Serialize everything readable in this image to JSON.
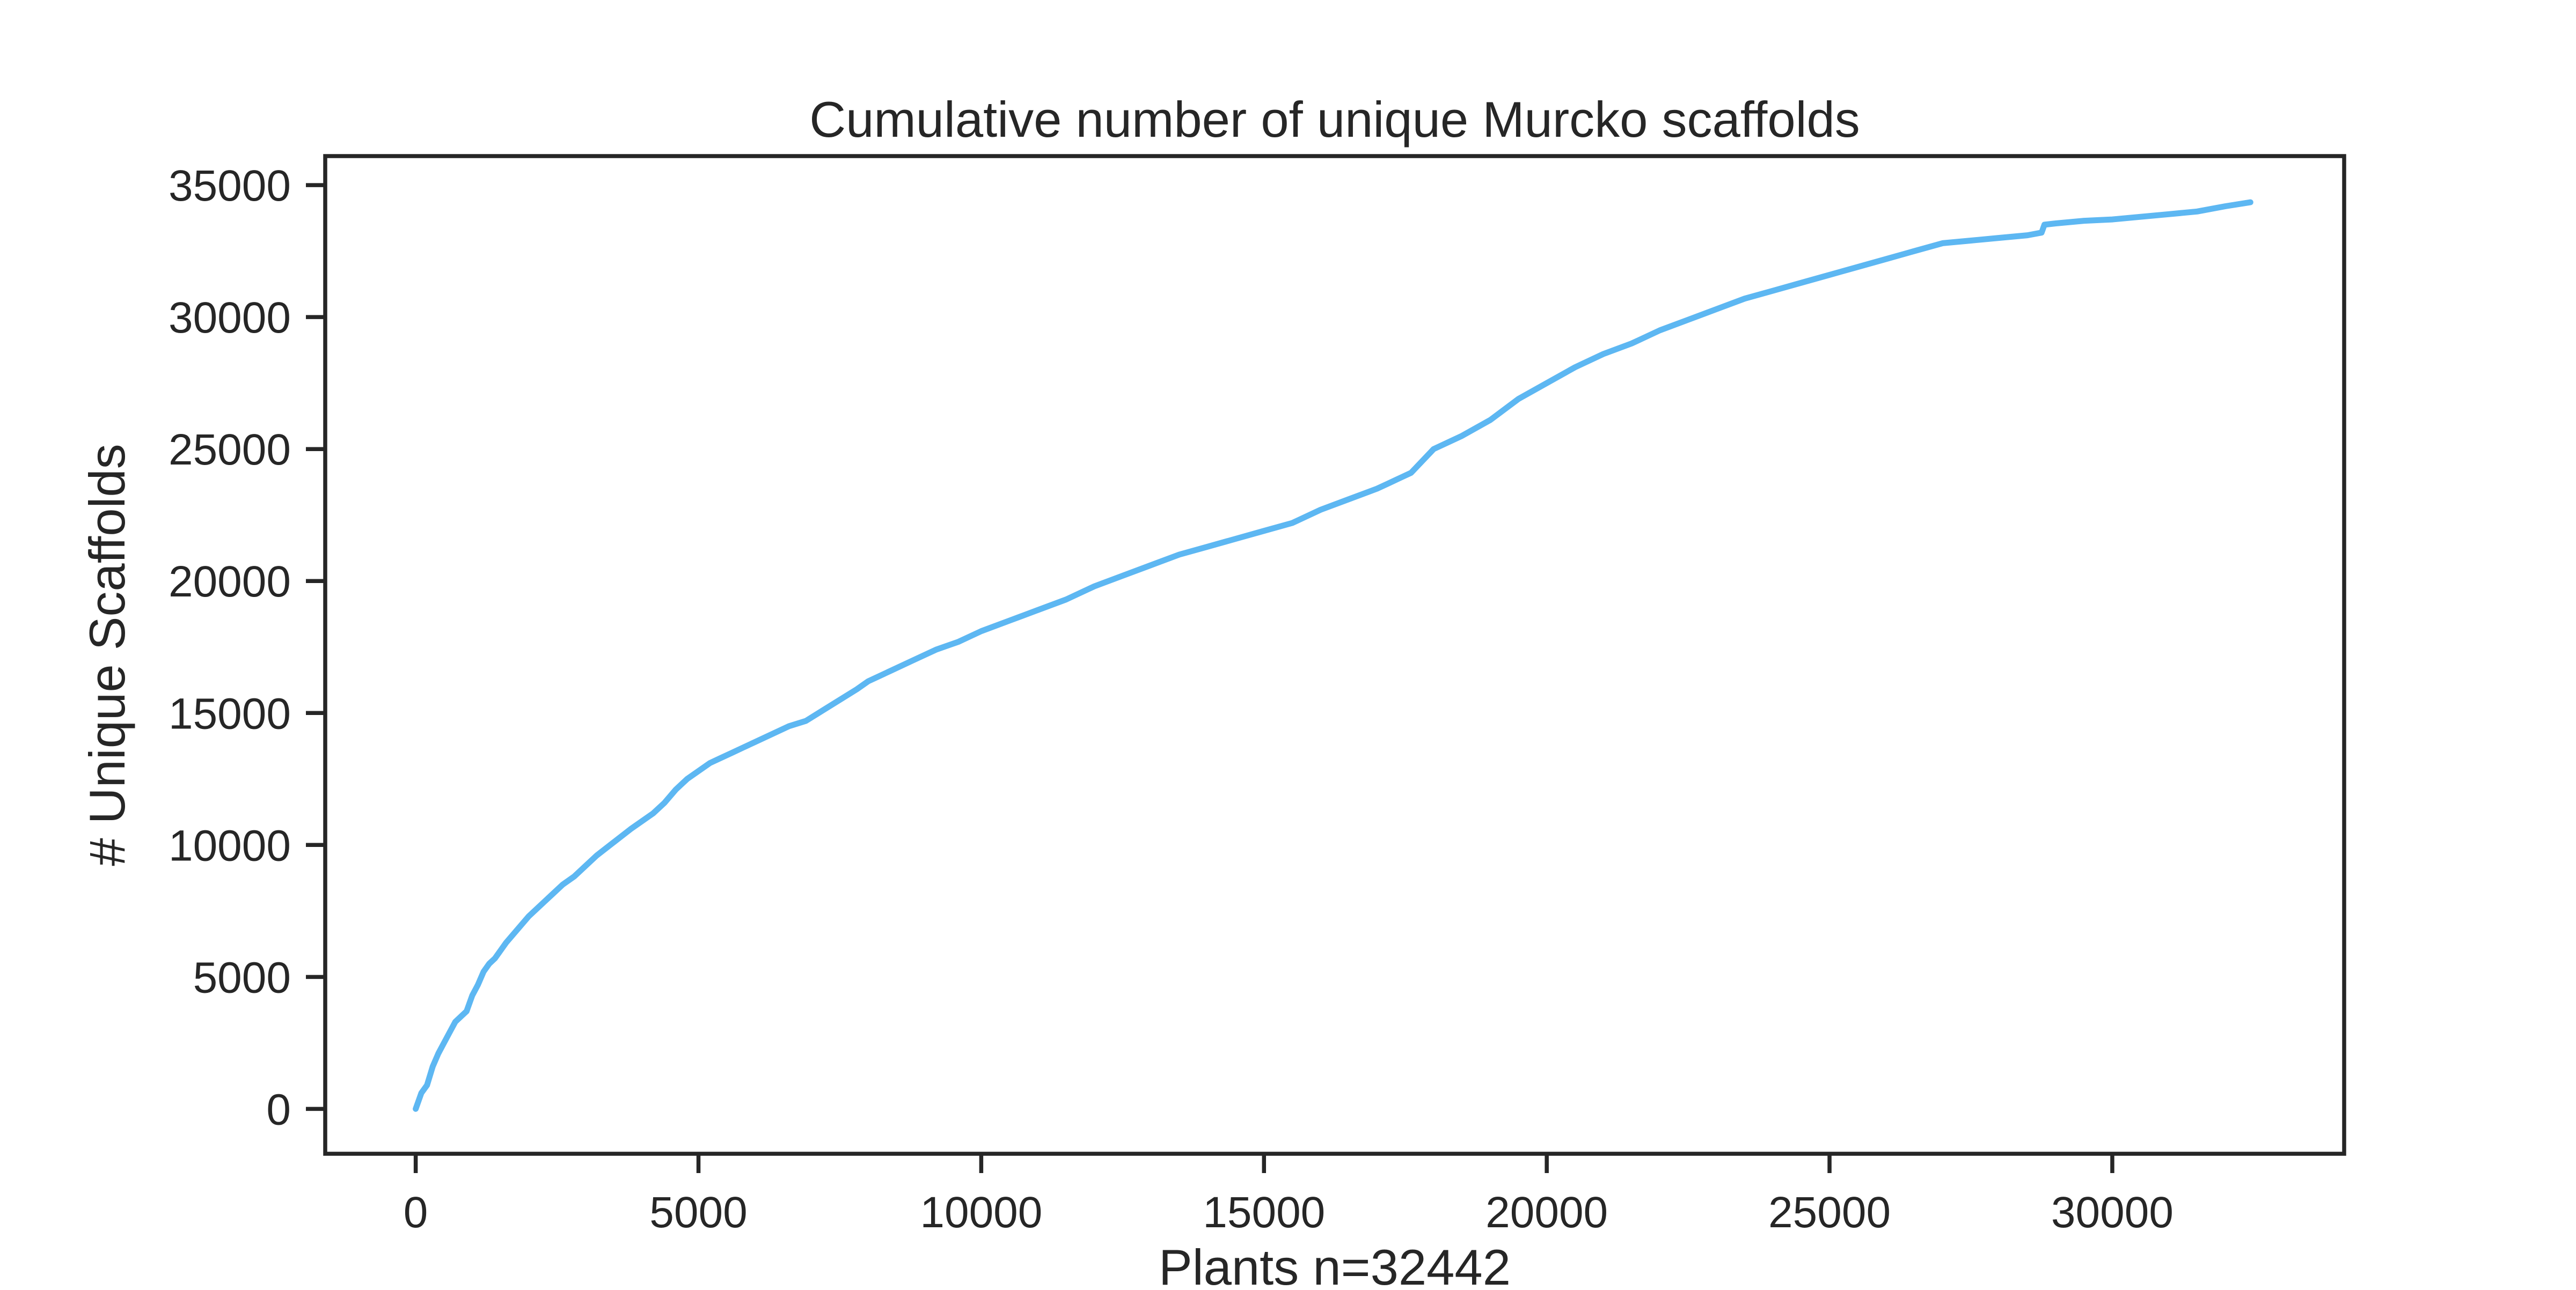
{
  "chart_data": {
    "type": "line",
    "title": "Cumulative number of unique Murcko scaffolds",
    "xlabel": "Plants n=32442",
    "ylabel": "# Unique Scaffolds",
    "xlim": [
      -1600,
      34100
    ],
    "ylim": [
      -1700,
      36100
    ],
    "xticks": [
      0,
      5000,
      10000,
      15000,
      20000,
      25000,
      30000
    ],
    "yticks": [
      0,
      5000,
      10000,
      15000,
      20000,
      25000,
      30000,
      35000
    ],
    "grid": false,
    "legend": "none",
    "colors": {
      "line": "#5db7f2",
      "axis": "#262626"
    },
    "series": [
      {
        "x": [
          0,
          100,
          200,
          300,
          400,
          500,
          600,
          700,
          800,
          900,
          1000,
          1100,
          1200,
          1300,
          1400,
          1500,
          1600,
          1800,
          2000,
          2200,
          2400,
          2600,
          2800,
          3000,
          3200,
          3500,
          3800,
          4000,
          4200,
          4400,
          4600,
          4800,
          5000,
          5200,
          5400,
          5600,
          5800,
          6000,
          6300,
          6600,
          6900,
          7200,
          7500,
          7800,
          8000,
          8400,
          8800,
          9200,
          9600,
          10000,
          10500,
          11000,
          11500,
          12000,
          12500,
          13000,
          13500,
          14000,
          14500,
          15000,
          15500,
          16000,
          16500,
          17000,
          17200,
          17400,
          17600,
          18000,
          18500,
          19000,
          19500,
          20000,
          20500,
          21000,
          21500,
          22000,
          22500,
          23000,
          23500,
          24000,
          24500,
          25000,
          25500,
          26000,
          26500,
          27000,
          27500,
          28000,
          28500,
          28750,
          28800,
          29000,
          29500,
          30000,
          30500,
          31000,
          31500,
          32000,
          32442
        ],
        "y": [
          0,
          600,
          900,
          1600,
          2100,
          2500,
          2900,
          3300,
          3500,
          3700,
          4300,
          4700,
          5200,
          5500,
          5700,
          6000,
          6300,
          6800,
          7300,
          7700,
          8100,
          8500,
          8800,
          9200,
          9600,
          10100,
          10600,
          10900,
          11200,
          11600,
          12100,
          12500,
          12800,
          13100,
          13300,
          13500,
          13700,
          13900,
          14200,
          14500,
          14700,
          15100,
          15500,
          15900,
          16200,
          16600,
          17000,
          17400,
          17700,
          18100,
          18500,
          18900,
          19300,
          19800,
          20200,
          20600,
          21000,
          21300,
          21600,
          21900,
          22200,
          22700,
          23100,
          23500,
          23700,
          23900,
          24100,
          25000,
          25500,
          26100,
          26900,
          27500,
          28100,
          28600,
          29000,
          29500,
          29900,
          30300,
          30700,
          31000,
          31300,
          31600,
          31900,
          32200,
          32500,
          32800,
          32900,
          33000,
          33100,
          33200,
          33500,
          33550,
          33650,
          33700,
          33800,
          33900,
          34000,
          34200,
          34350
        ]
      }
    ]
  }
}
